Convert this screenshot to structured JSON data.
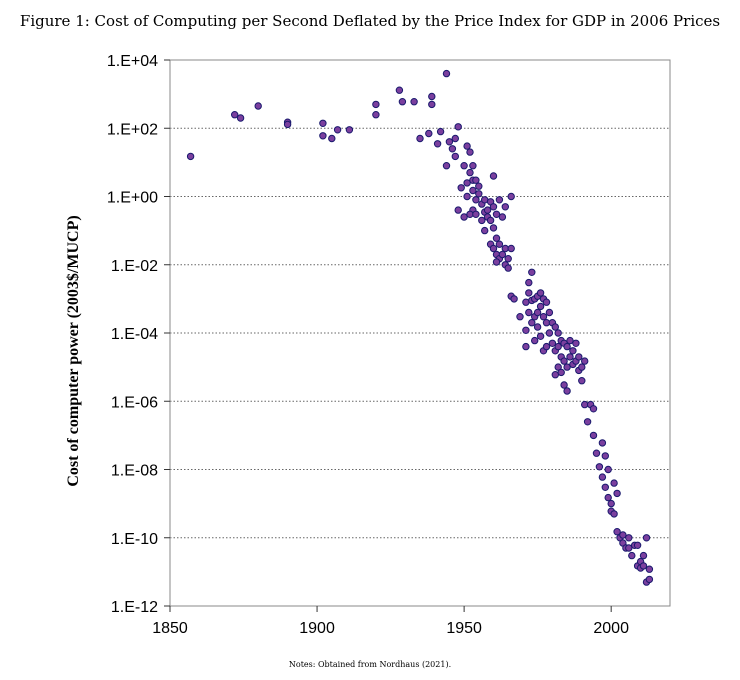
{
  "figure": {
    "title": "Figure 1: Cost of Computing per Second Deflated by the Price Index for GDP in 2006 Prices",
    "note": "Notes: Obtained from Nordhaus (2021)."
  },
  "chart_data": {
    "type": "scatter",
    "title": "Figure 1: Cost of Computing per Second Deflated by the Price Index for GDP in 2006 Prices",
    "xlabel": "",
    "ylabel": "Cost of computer power (2003$/MUCP)",
    "xlim": [
      1850,
      2020
    ],
    "ylim": [
      1e-12,
      10000.0
    ],
    "y_scale": "log10",
    "x_ticks": [
      "1850",
      "1900",
      "1950",
      "2000"
    ],
    "y_ticks": [
      "1.E+04",
      "1.E+02",
      "1.E+00",
      "1.E-02",
      "1.E-04",
      "1.E-06",
      "1.E-08",
      "1.E-10",
      "1.E-12"
    ],
    "grid": "horizontal dotted",
    "marker_fill": "#7b3f9e",
    "marker_edge": "#1a1a6e",
    "points": [
      [
        1857,
        15
      ],
      [
        1872,
        250
      ],
      [
        1874,
        200
      ],
      [
        1880,
        450
      ],
      [
        1890,
        150
      ],
      [
        1890,
        130
      ],
      [
        1902,
        140
      ],
      [
        1902,
        60
      ],
      [
        1905,
        50
      ],
      [
        1907,
        90
      ],
      [
        1911,
        90
      ],
      [
        1920,
        500
      ],
      [
        1920,
        250
      ],
      [
        1928,
        1300
      ],
      [
        1929,
        600
      ],
      [
        1933,
        600
      ],
      [
        1935,
        50
      ],
      [
        1938,
        70
      ],
      [
        1939,
        850
      ],
      [
        1939,
        500
      ],
      [
        1941,
        35
      ],
      [
        1942,
        80
      ],
      [
        1944,
        4000
      ],
      [
        1945,
        40
      ],
      [
        1946,
        25
      ],
      [
        1947,
        50
      ],
      [
        1947,
        15
      ],
      [
        1948,
        110
      ],
      [
        1950,
        8
      ],
      [
        1951,
        30
      ],
      [
        1952,
        20
      ],
      [
        1953,
        3
      ],
      [
        1953,
        0.4
      ],
      [
        1944,
        8
      ],
      [
        1948,
        0.4
      ],
      [
        1949,
        1.8
      ],
      [
        1950,
        0.25
      ],
      [
        1951,
        2.5
      ],
      [
        1951,
        1
      ],
      [
        1952,
        0.3
      ],
      [
        1952,
        5
      ],
      [
        1953,
        8
      ],
      [
        1953,
        1.5
      ],
      [
        1954,
        3
      ],
      [
        1954,
        0.8
      ],
      [
        1954,
        0.3
      ],
      [
        1955,
        1.2
      ],
      [
        1955,
        2
      ],
      [
        1956,
        0.6
      ],
      [
        1956,
        0.2
      ],
      [
        1957,
        0.8
      ],
      [
        1957,
        0.35
      ],
      [
        1957,
        0.1
      ],
      [
        1958,
        0.4
      ],
      [
        1958,
        0.25
      ],
      [
        1959,
        0.7
      ],
      [
        1959,
        0.2
      ],
      [
        1959,
        0.04
      ],
      [
        1960,
        0.5
      ],
      [
        1960,
        0.12
      ],
      [
        1960,
        0.03
      ],
      [
        1961,
        0.3
      ],
      [
        1961,
        0.06
      ],
      [
        1961,
        0.02
      ],
      [
        1962,
        0.8
      ],
      [
        1962,
        0.04
      ],
      [
        1962,
        0.015
      ],
      [
        1963,
        0.25
      ],
      [
        1963,
        0.02
      ],
      [
        1964,
        0.5
      ],
      [
        1964,
        0.03
      ],
      [
        1964,
        0.01
      ],
      [
        1965,
        0.015
      ],
      [
        1965,
        0.008
      ],
      [
        1966,
        1
      ],
      [
        1966,
        0.03
      ],
      [
        1960,
        4
      ],
      [
        1961,
        0.012
      ],
      [
        1966,
        0.0012
      ],
      [
        1967,
        0.001
      ],
      [
        1969,
        0.0003
      ],
      [
        1971,
        0.0008
      ],
      [
        1971,
        0.00012
      ],
      [
        1971,
        4e-05
      ],
      [
        1972,
        0.003
      ],
      [
        1972,
        0.0015
      ],
      [
        1972,
        0.0004
      ],
      [
        1973,
        0.006
      ],
      [
        1973,
        0.0009
      ],
      [
        1973,
        0.0002
      ],
      [
        1974,
        0.001
      ],
      [
        1974,
        0.0003
      ],
      [
        1974,
        6e-05
      ],
      [
        1975,
        0.0012
      ],
      [
        1975,
        0.0004
      ],
      [
        1975,
        0.00015
      ],
      [
        1976,
        0.0015
      ],
      [
        1976,
        0.0006
      ],
      [
        1976,
        8e-05
      ],
      [
        1977,
        0.001
      ],
      [
        1977,
        0.0003
      ],
      [
        1977,
        3e-05
      ],
      [
        1978,
        0.0008
      ],
      [
        1978,
        0.0002
      ],
      [
        1978,
        4e-05
      ],
      [
        1979,
        0.0004
      ],
      [
        1979,
        0.0001
      ],
      [
        1980,
        0.0002
      ],
      [
        1980,
        5e-05
      ],
      [
        1981,
        0.00015
      ],
      [
        1981,
        3e-05
      ],
      [
        1981,
        6e-06
      ],
      [
        1982,
        0.0001
      ],
      [
        1982,
        4e-05
      ],
      [
        1982,
        1e-05
      ],
      [
        1983,
        6e-05
      ],
      [
        1983,
        2e-05
      ],
      [
        1983,
        7e-06
      ],
      [
        1984,
        5e-05
      ],
      [
        1984,
        1.5e-05
      ],
      [
        1984,
        3e-06
      ],
      [
        1985,
        4e-05
      ],
      [
        1985,
        1e-05
      ],
      [
        1985,
        2e-06
      ],
      [
        1986,
        6e-05
      ],
      [
        1986,
        2e-05
      ],
      [
        1987,
        3e-05
      ],
      [
        1987,
        1.2e-05
      ],
      [
        1988,
        5e-05
      ],
      [
        1988,
        1.5e-05
      ],
      [
        1989,
        2e-05
      ],
      [
        1989,
        8e-06
      ],
      [
        1990,
        1e-05
      ],
      [
        1990,
        4e-06
      ],
      [
        1991,
        1.5e-05
      ],
      [
        1991,
        8e-07
      ],
      [
        1992,
        2.5e-07
      ],
      [
        1993,
        8e-07
      ],
      [
        1994,
        6e-07
      ],
      [
        1994,
        1e-07
      ],
      [
        1995,
        3e-08
      ],
      [
        1996,
        1.2e-08
      ],
      [
        1997,
        6e-08
      ],
      [
        1997,
        6e-09
      ],
      [
        1998,
        2.5e-08
      ],
      [
        1998,
        3e-09
      ],
      [
        1999,
        1e-08
      ],
      [
        1999,
        1.5e-09
      ],
      [
        2000,
        1e-09
      ],
      [
        2000,
        6e-10
      ],
      [
        2001,
        4e-09
      ],
      [
        2001,
        5e-10
      ],
      [
        2002,
        2e-09
      ],
      [
        2002,
        1.5e-10
      ],
      [
        2003,
        1e-10
      ],
      [
        2004,
        7e-11
      ],
      [
        2004,
        1.2e-10
      ],
      [
        2005,
        5e-11
      ],
      [
        2006,
        1e-10
      ],
      [
        2006,
        5e-11
      ],
      [
        2007,
        3e-11
      ],
      [
        2008,
        6e-11
      ],
      [
        2009,
        1.5e-11
      ],
      [
        2009,
        6e-11
      ],
      [
        2010,
        2e-11
      ],
      [
        2010,
        1.3e-11
      ],
      [
        2011,
        3e-11
      ],
      [
        2011,
        1.5e-11
      ],
      [
        2012,
        1e-10
      ],
      [
        2012,
        5e-12
      ],
      [
        2013,
        1.2e-11
      ],
      [
        2013,
        6e-12
      ]
    ]
  }
}
